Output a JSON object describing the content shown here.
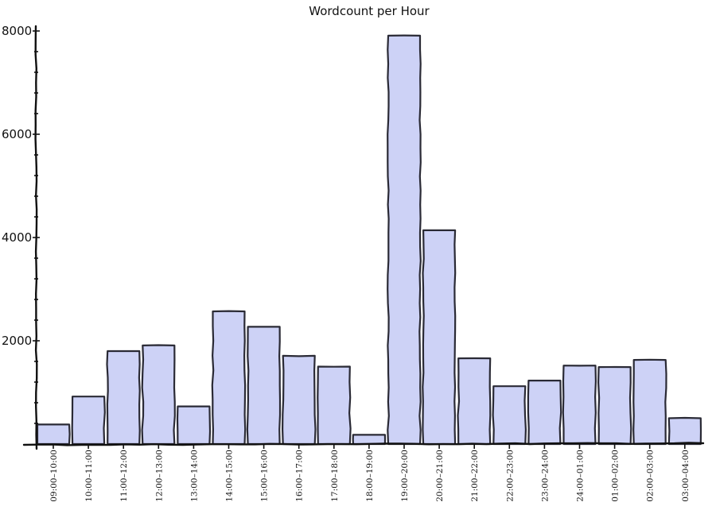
{
  "chart_data": {
    "type": "bar",
    "title": "Wordcount per Hour",
    "xlabel": "",
    "ylabel": "",
    "ylim": [
      0,
      8000
    ],
    "yticks": [
      2000,
      4000,
      6000,
      8000
    ],
    "ytick_labels": [
      "2000",
      "4000",
      "6000",
      "8000"
    ],
    "grid": false,
    "legend": "none",
    "bar_color": "#cdd2f6",
    "edge_color": "#2a2a35",
    "categories": [
      "09:00–10:00",
      "10:00–11:00",
      "11:00–12:00",
      "12:00–13:00",
      "13:00–14:00",
      "14:00–15:00",
      "15:00–16:00",
      "16:00–17:00",
      "17:00–18:00",
      "18:00–19:00",
      "19:00–20:00",
      "20:00–21:00",
      "21:00–22:00",
      "22:00–23:00",
      "23:00–24:00",
      "24:00–01:00",
      "01:00–02:00",
      "02:00–03:00",
      "03:00–04:00"
    ],
    "values": [
      380,
      920,
      1800,
      1910,
      730,
      2570,
      2270,
      1710,
      1500,
      180,
      7910,
      4140,
      1660,
      1120,
      1230,
      1520,
      1490,
      1630,
      500
    ]
  }
}
